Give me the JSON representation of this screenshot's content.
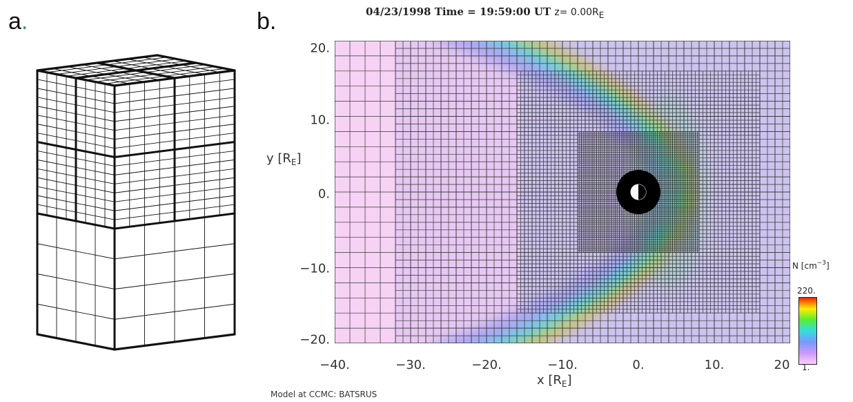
{
  "panels": {
    "a_label": "a",
    "a_dot": ".",
    "b_label": "b."
  },
  "plot": {
    "title_main": "04/23/1998 Time = 19:59:00 UT",
    "title_z": "z= 0.00R",
    "title_z_sub": "E",
    "x_label": "x [R",
    "x_label_sub": "E",
    "x_label_end": "]",
    "y_label": "y [R",
    "y_label_sub": "E",
    "y_label_end": "]",
    "x_ticks": [
      "−40.",
      "−30.",
      "−20.",
      "−10.",
      "0.",
      "10.",
      "20"
    ],
    "y_ticks": [
      "20.",
      "10.",
      "0.",
      "−10.",
      "−20."
    ],
    "credit": "Model at CCMC: BATSRUS"
  },
  "colorbar": {
    "title": "N [cm",
    "title_sup": "−3",
    "title_end": "]",
    "max_label": "220.",
    "min_label": "1.",
    "colors": [
      "#ff2200",
      "#ffee00",
      "#55ee33",
      "#33dddd",
      "#7799ff",
      "#cc99ff",
      "#ffccff"
    ]
  },
  "chart_data": {
    "type": "heatmap",
    "x_range": [
      -40,
      20
    ],
    "y_range": [
      -20,
      20
    ],
    "grid": true
  }
}
